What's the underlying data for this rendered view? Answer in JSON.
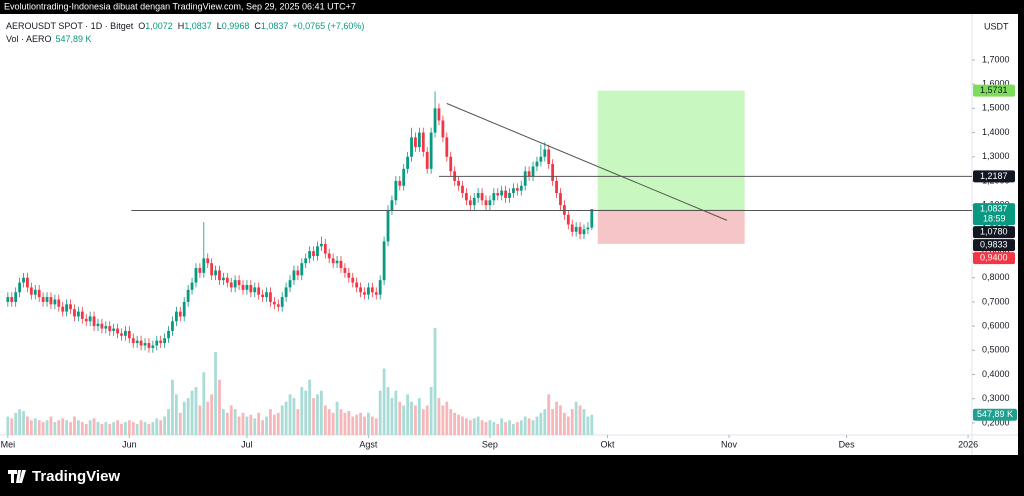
{
  "header": "Evolutiontrading-Indonesia dibuat dengan TradingView.com, Sep 29, 2025 06:41 UTC+7",
  "footer": "TradingView",
  "chart_data": {
    "type": "candlestick",
    "symbol": "AEROUSDT SPOT · 1D · Bitget",
    "ohlc_legend": [
      {
        "key": "O",
        "value": "1,0072"
      },
      {
        "key": "H",
        "value": "1,0837"
      },
      {
        "key": "L",
        "value": "0,9968"
      },
      {
        "key": "C",
        "value": "1,0837"
      }
    ],
    "change": "+0,0765 (+7,60%)",
    "volume_name": "Vol · AERO",
    "volume_value": "547,89 K",
    "currency": "USDT",
    "up_color": "#089981",
    "down_color": "#f23645",
    "volume_up_color": "#a9dcd6",
    "volume_down_color": "#f7b6b9",
    "grid": false,
    "xlim": [
      -2,
      246
    ],
    "xticks": [
      {
        "value": 0,
        "label": "Mei"
      },
      {
        "value": 31,
        "label": "Jun"
      },
      {
        "value": 61,
        "label": "Jul"
      },
      {
        "value": 92,
        "label": "Agst"
      },
      {
        "value": 123,
        "label": "Sep"
      },
      {
        "value": 153,
        "label": "Okt"
      },
      {
        "value": 184,
        "label": "Nov"
      },
      {
        "value": 214,
        "label": "Des"
      },
      {
        "value": 245,
        "label": "2026"
      }
    ],
    "ylim": [
      0.15,
      1.89
    ],
    "yticks": [
      {
        "value": 0.2,
        "label": "0,2000"
      },
      {
        "value": 0.3,
        "label": "0,3000"
      },
      {
        "value": 0.4,
        "label": "0,4000"
      },
      {
        "value": 0.5,
        "label": "0,5000"
      },
      {
        "value": 0.6,
        "label": "0,6000"
      },
      {
        "value": 0.7,
        "label": "0,7000"
      },
      {
        "value": 0.8,
        "label": "0,8000"
      },
      {
        "value": 0.9,
        "label": "0,9000"
      },
      {
        "value": 1.0,
        "label": "1,0000"
      },
      {
        "value": 1.1,
        "label": "1,1000"
      },
      {
        "value": 1.2,
        "label": "1,2000"
      },
      {
        "value": 1.3,
        "label": "1,3000"
      },
      {
        "value": 1.4,
        "label": "1,4000"
      },
      {
        "value": 1.5,
        "label": "1,5000"
      },
      {
        "value": 1.6,
        "label": "1,6000"
      },
      {
        "value": 1.7,
        "label": "1,7000"
      }
    ],
    "volume_lim": [
      0,
      11400000
    ],
    "open": [
      0.7,
      0.72,
      0.7,
      0.74,
      0.78,
      0.8,
      0.76,
      0.73,
      0.75,
      0.72,
      0.7,
      0.72,
      0.69,
      0.71,
      0.68,
      0.66,
      0.69,
      0.67,
      0.64,
      0.66,
      0.63,
      0.62,
      0.64,
      0.6,
      0.61,
      0.59,
      0.6,
      0.58,
      0.59,
      0.57,
      0.56,
      0.58,
      0.55,
      0.53,
      0.54,
      0.52,
      0.53,
      0.51,
      0.52,
      0.54,
      0.53,
      0.55,
      0.58,
      0.62,
      0.66,
      0.64,
      0.7,
      0.75,
      0.78,
      0.84,
      0.82,
      0.88,
      0.86,
      0.81,
      0.83,
      0.79,
      0.8,
      0.78,
      0.76,
      0.79,
      0.77,
      0.75,
      0.77,
      0.74,
      0.76,
      0.73,
      0.72,
      0.74,
      0.7,
      0.69,
      0.68,
      0.72,
      0.76,
      0.79,
      0.83,
      0.81,
      0.86,
      0.88,
      0.91,
      0.89,
      0.93,
      0.94,
      0.9,
      0.88,
      0.86,
      0.87,
      0.84,
      0.82,
      0.8,
      0.78,
      0.76,
      0.74,
      0.73,
      0.76,
      0.74,
      0.73,
      0.79,
      0.95,
      1.08,
      1.12,
      1.2,
      1.18,
      1.25,
      1.3,
      1.38,
      1.34,
      1.4,
      1.32,
      1.25,
      1.4,
      1.5,
      1.45,
      1.38,
      1.3,
      1.24,
      1.2,
      1.18,
      1.15,
      1.12,
      1.1,
      1.13,
      1.15,
      1.12,
      1.1,
      1.12,
      1.15,
      1.14,
      1.16,
      1.13,
      1.15,
      1.17,
      1.16,
      1.18,
      1.24,
      1.22,
      1.26,
      1.28,
      1.3,
      1.33,
      1.27,
      1.2,
      1.15,
      1.1,
      1.06,
      1.02,
      0.99,
      1.01,
      0.98,
      1.0,
      1.0072
    ],
    "high": [
      0.74,
      0.74,
      0.76,
      0.8,
      0.82,
      0.82,
      0.78,
      0.77,
      0.77,
      0.74,
      0.74,
      0.74,
      0.73,
      0.73,
      0.7,
      0.71,
      0.71,
      0.69,
      0.68,
      0.68,
      0.65,
      0.66,
      0.66,
      0.63,
      0.63,
      0.62,
      0.62,
      0.61,
      0.61,
      0.59,
      0.6,
      0.6,
      0.57,
      0.56,
      0.56,
      0.55,
      0.55,
      0.54,
      0.56,
      0.56,
      0.57,
      0.6,
      0.64,
      0.68,
      0.68,
      0.72,
      0.77,
      0.8,
      0.86,
      0.86,
      1.03,
      0.9,
      0.88,
      0.85,
      0.85,
      0.82,
      0.82,
      0.8,
      0.81,
      0.81,
      0.79,
      0.79,
      0.79,
      0.78,
      0.78,
      0.75,
      0.76,
      0.76,
      0.72,
      0.71,
      0.74,
      0.78,
      0.81,
      0.85,
      0.85,
      0.88,
      0.9,
      0.93,
      0.93,
      0.95,
      0.97,
      0.96,
      0.92,
      0.9,
      0.89,
      0.89,
      0.86,
      0.84,
      0.82,
      0.8,
      0.78,
      0.76,
      0.78,
      0.78,
      0.76,
      0.81,
      0.97,
      1.1,
      1.14,
      1.22,
      1.22,
      1.27,
      1.32,
      1.42,
      1.4,
      1.42,
      1.42,
      1.34,
      1.42,
      1.57,
      1.52,
      1.47,
      1.4,
      1.32,
      1.26,
      1.22,
      1.2,
      1.17,
      1.14,
      1.15,
      1.17,
      1.17,
      1.14,
      1.14,
      1.17,
      1.17,
      1.18,
      1.18,
      1.17,
      1.19,
      1.19,
      1.2,
      1.26,
      1.26,
      1.28,
      1.3,
      1.35,
      1.36,
      1.35,
      1.29,
      1.22,
      1.17,
      1.12,
      1.08,
      1.04,
      1.03,
      1.03,
      1.02,
      1.03,
      1.0837
    ],
    "low": [
      0.68,
      0.68,
      0.68,
      0.72,
      0.76,
      0.74,
      0.71,
      0.71,
      0.7,
      0.68,
      0.68,
      0.67,
      0.67,
      0.66,
      0.64,
      0.64,
      0.65,
      0.62,
      0.62,
      0.61,
      0.6,
      0.6,
      0.58,
      0.58,
      0.57,
      0.57,
      0.56,
      0.56,
      0.55,
      0.54,
      0.54,
      0.53,
      0.51,
      0.51,
      0.5,
      0.5,
      0.49,
      0.49,
      0.5,
      0.51,
      0.51,
      0.53,
      0.56,
      0.6,
      0.62,
      0.62,
      0.68,
      0.73,
      0.76,
      0.8,
      0.8,
      0.84,
      0.79,
      0.79,
      0.77,
      0.77,
      0.76,
      0.74,
      0.74,
      0.75,
      0.73,
      0.73,
      0.72,
      0.72,
      0.71,
      0.7,
      0.7,
      0.68,
      0.67,
      0.66,
      0.66,
      0.7,
      0.74,
      0.77,
      0.79,
      0.79,
      0.84,
      0.86,
      0.87,
      0.87,
      0.91,
      0.88,
      0.86,
      0.84,
      0.84,
      0.82,
      0.8,
      0.78,
      0.76,
      0.74,
      0.72,
      0.71,
      0.71,
      0.72,
      0.71,
      0.71,
      0.77,
      0.93,
      1.06,
      1.1,
      1.16,
      1.16,
      1.23,
      1.28,
      1.32,
      1.32,
      1.3,
      1.23,
      1.23,
      1.38,
      1.43,
      1.36,
      1.28,
      1.22,
      1.18,
      1.16,
      1.13,
      1.1,
      1.08,
      1.08,
      1.11,
      1.1,
      1.08,
      1.08,
      1.1,
      1.12,
      1.12,
      1.11,
      1.11,
      1.13,
      1.14,
      1.14,
      1.16,
      1.2,
      1.2,
      1.24,
      1.26,
      1.28,
      1.25,
      1.18,
      1.13,
      1.08,
      1.04,
      1.0,
      0.97,
      0.97,
      0.96,
      0.96,
      0.98,
      0.9968
    ],
    "close": [
      0.72,
      0.7,
      0.74,
      0.78,
      0.8,
      0.76,
      0.73,
      0.75,
      0.72,
      0.7,
      0.72,
      0.69,
      0.71,
      0.68,
      0.66,
      0.69,
      0.67,
      0.64,
      0.66,
      0.63,
      0.62,
      0.64,
      0.6,
      0.61,
      0.59,
      0.6,
      0.58,
      0.59,
      0.57,
      0.56,
      0.58,
      0.55,
      0.53,
      0.54,
      0.52,
      0.53,
      0.51,
      0.52,
      0.54,
      0.53,
      0.55,
      0.58,
      0.62,
      0.66,
      0.64,
      0.7,
      0.75,
      0.78,
      0.84,
      0.82,
      0.88,
      0.86,
      0.81,
      0.83,
      0.79,
      0.8,
      0.78,
      0.76,
      0.79,
      0.77,
      0.75,
      0.77,
      0.74,
      0.76,
      0.73,
      0.72,
      0.74,
      0.7,
      0.69,
      0.68,
      0.72,
      0.76,
      0.79,
      0.83,
      0.81,
      0.86,
      0.88,
      0.91,
      0.89,
      0.93,
      0.94,
      0.9,
      0.88,
      0.86,
      0.87,
      0.84,
      0.82,
      0.8,
      0.78,
      0.76,
      0.74,
      0.73,
      0.76,
      0.74,
      0.73,
      0.79,
      0.95,
      1.08,
      1.12,
      1.2,
      1.18,
      1.25,
      1.3,
      1.38,
      1.34,
      1.4,
      1.32,
      1.25,
      1.4,
      1.5,
      1.45,
      1.38,
      1.3,
      1.24,
      1.2,
      1.18,
      1.15,
      1.12,
      1.1,
      1.13,
      1.15,
      1.12,
      1.1,
      1.12,
      1.15,
      1.14,
      1.16,
      1.13,
      1.15,
      1.17,
      1.16,
      1.18,
      1.24,
      1.22,
      1.26,
      1.28,
      1.3,
      1.33,
      1.27,
      1.2,
      1.15,
      1.1,
      1.06,
      1.02,
      0.99,
      1.01,
      0.98,
      1.0,
      1.0072,
      1.0837
    ],
    "volume": [
      500000,
      450000,
      600000,
      700000,
      650000,
      500000,
      400000,
      450000,
      400000,
      350000,
      400000,
      500000,
      350000,
      400000,
      450000,
      400000,
      350000,
      500000,
      400000,
      350000,
      300000,
      400000,
      450000,
      350000,
      300000,
      350000,
      300000,
      350000,
      400000,
      300000,
      350000,
      400000,
      350000,
      300000,
      400000,
      350000,
      300000,
      350000,
      450000,
      400000,
      500000,
      700000,
      1500000,
      1100000,
      600000,
      900000,
      1000000,
      1200000,
      1300000,
      800000,
      1700000,
      900000,
      1100000,
      2250000,
      1500000,
      700000,
      600000,
      800000,
      700000,
      500000,
      600000,
      500000,
      550000,
      450000,
      600000,
      400000,
      500000,
      700000,
      550000,
      600000,
      800000,
      900000,
      1100000,
      1000000,
      700000,
      1300000,
      1200000,
      1500000,
      1000000,
      1100000,
      1200000,
      800000,
      700000,
      600000,
      900000,
      700000,
      600000,
      650000,
      500000,
      550000,
      600000,
      500000,
      600000,
      500000,
      450000,
      1200000,
      1800000,
      1300000,
      1000000,
      1200000,
      900000,
      800000,
      1100000,
      900000,
      800000,
      1000000,
      700000,
      800000,
      1300000,
      2900000,
      1000000,
      800000,
      900000,
      700000,
      600000,
      550000,
      500000,
      450000,
      400000,
      450000,
      500000,
      400000,
      350000,
      400000,
      350000,
      300000,
      450000,
      350000,
      400000,
      300000,
      350000,
      400000,
      500000,
      450000,
      400000,
      500000,
      600000,
      700000,
      1100000,
      700000,
      900000,
      800000,
      600000,
      500000,
      700000,
      900000,
      800000,
      700000,
      500000,
      547890
    ],
    "hlines": [
      {
        "value": 1.078,
        "from": 31.5,
        "color": "#555555"
      },
      {
        "value": 1.2187,
        "from": 110,
        "color": "#555555"
      }
    ],
    "trendline": {
      "x": [
        112,
        183.5
      ],
      "y": [
        1.52,
        1.037
      ],
      "color": "#555555"
    },
    "position": {
      "from": 150.5,
      "to": 188,
      "target": 1.5731,
      "entry": 1.0837,
      "stop": 0.94,
      "target_color": "#c8f8c0",
      "stop_color": "#f6c5c7"
    },
    "price_labels": [
      {
        "value": 1.5731,
        "label": "1,5731",
        "color": "#7ddc5a",
        "text_color": "#131722"
      },
      {
        "value": 1.2187,
        "label": "1,2187",
        "color": "#131722",
        "text_color": "#ffffff"
      },
      {
        "value": 1.0837,
        "label": "1,0837",
        "countdown": "18:59",
        "color": "#089981",
        "text_color": "#ffffff"
      },
      {
        "value": 1.078,
        "label": "1,0780",
        "color": "#131722",
        "text_color": "#ffffff"
      },
      {
        "value": 0.9833,
        "label": "0,9833",
        "color": "#131722",
        "text_color": "#ffffff"
      },
      {
        "value": 0.94,
        "label": "0,9400",
        "color": "#f23645",
        "text_color": "#ffffff"
      }
    ],
    "volume_label_color": "#22a08f"
  }
}
